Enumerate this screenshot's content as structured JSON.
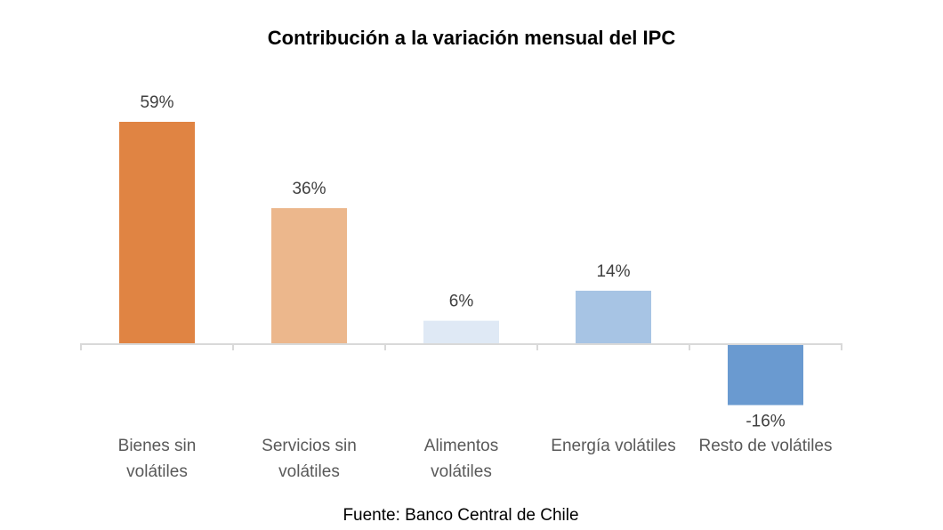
{
  "chart_data": {
    "type": "bar",
    "title": "Contribución a la variación mensual del IPC",
    "categories": [
      [
        "Bienes sin",
        "volátiles"
      ],
      [
        "Servicios sin",
        "volátiles"
      ],
      [
        "Alimentos",
        "volátiles"
      ],
      [
        "Energía volátiles"
      ],
      [
        "Resto de volátiles"
      ]
    ],
    "values": [
      59,
      36,
      6,
      14,
      -16
    ],
    "labels": [
      "59%",
      "36%",
      "6%",
      "14%",
      "-16%"
    ],
    "colors": [
      "#E08443",
      "#ECB78C",
      "#DFE9F5",
      "#A7C4E4",
      "#6A9AD0"
    ],
    "ylim": [
      -16,
      59
    ],
    "unit": "%",
    "grid": false,
    "legend": "none",
    "xlabel": "",
    "ylabel": ""
  },
  "source": "Fuente: Banco Central de Chile"
}
